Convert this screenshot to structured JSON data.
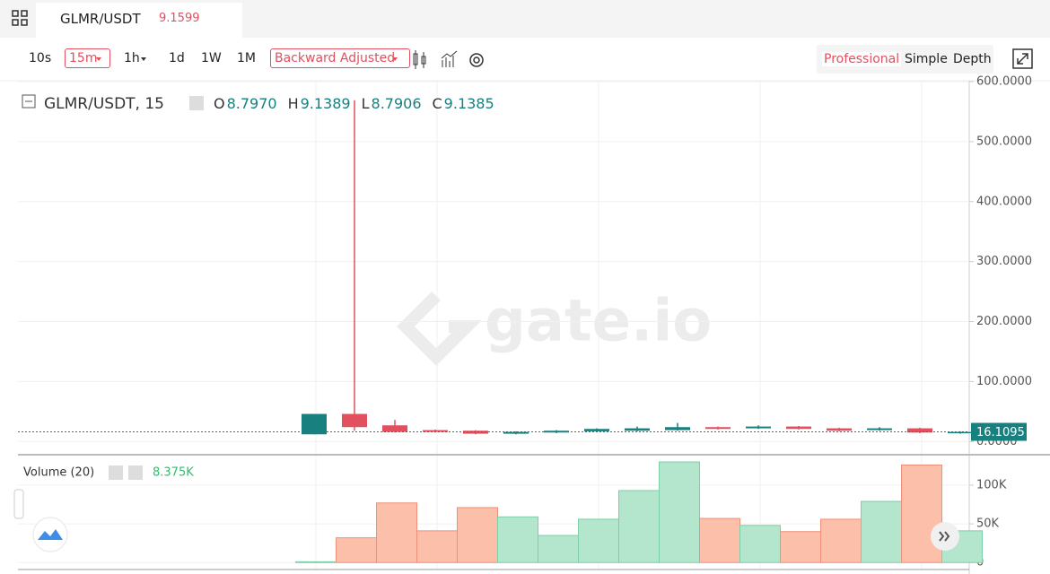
{
  "header": {
    "symbol": "GLMR/USDT",
    "price": "9.1599"
  },
  "toolbar": {
    "intervals": [
      "10s",
      "15m",
      "1h",
      "1d",
      "1W",
      "1M"
    ],
    "adjust": "Backward Adjusted",
    "views": [
      "Professional",
      "Simple",
      "Depth"
    ]
  },
  "watermark": "gate.io",
  "chart_data": [
    {
      "type": "candlestick",
      "title": "GLMR/USDT, 15",
      "ohlc_legend": [
        {
          "key": "O",
          "value": "8.7970"
        },
        {
          "key": "H",
          "value": "9.1389"
        },
        {
          "key": "L",
          "value": "8.7906"
        },
        {
          "key": "C",
          "value": "9.1385"
        }
      ],
      "categories": [
        null,
        null,
        null,
        null,
        null,
        null,
        null,
        null,
        null,
        null,
        null,
        null,
        null,
        null,
        null,
        null,
        null
      ],
      "open": [
        12,
        46,
        27,
        19,
        18,
        13,
        15,
        17,
        18,
        19,
        24,
        22,
        25,
        22,
        19,
        22,
        14
      ],
      "high": [
        46,
        569,
        36,
        20,
        19,
        17,
        19,
        22,
        25,
        31,
        25,
        27,
        26,
        23,
        24,
        23,
        17
      ],
      "low": [
        12,
        18,
        15,
        15,
        12,
        12,
        14,
        16,
        17,
        18,
        20,
        21,
        20,
        17,
        18,
        14,
        13
      ],
      "close": [
        46,
        24,
        16,
        16,
        13,
        16,
        18,
        21,
        22,
        24,
        21,
        25,
        21,
        18,
        22,
        15,
        16
      ],
      "up_color": "#18807e",
      "down_color": "#e2505f",
      "last_price": 16.1095,
      "ylim": [
        -22,
        600
      ],
      "yticks": [
        {
          "value": 0,
          "label": "0.0000"
        },
        {
          "value": 100,
          "label": "100.0000"
        },
        {
          "value": 200,
          "label": "200.0000"
        },
        {
          "value": 300,
          "label": "300.0000"
        },
        {
          "value": 400,
          "label": "400.0000"
        },
        {
          "value": 500,
          "label": "500.0000"
        },
        {
          "value": 600,
          "label": "600.0000"
        }
      ],
      "grid": true
    },
    {
      "type": "bar",
      "title": "Volume (20)",
      "last_label": "8.375K",
      "categories": [
        null,
        null,
        null,
        null,
        null,
        null,
        null,
        null,
        null,
        null,
        null,
        null,
        null,
        null,
        null,
        null,
        null
      ],
      "values": [
        1000,
        32000,
        77000,
        41000,
        71000,
        59000,
        35000,
        56000,
        93000,
        130000,
        57000,
        48000,
        40000,
        56000,
        79000,
        126000,
        41000
      ],
      "up_color": "#b3e6cd",
      "down_color": "#fbbfaa",
      "ylim": [
        -9000,
        137000
      ],
      "yticks": [
        0,
        {
          "value": 50000,
          "label": "50K"
        },
        {
          "value": 100000,
          "label": "100K"
        }
      ],
      "grid": true
    }
  ]
}
